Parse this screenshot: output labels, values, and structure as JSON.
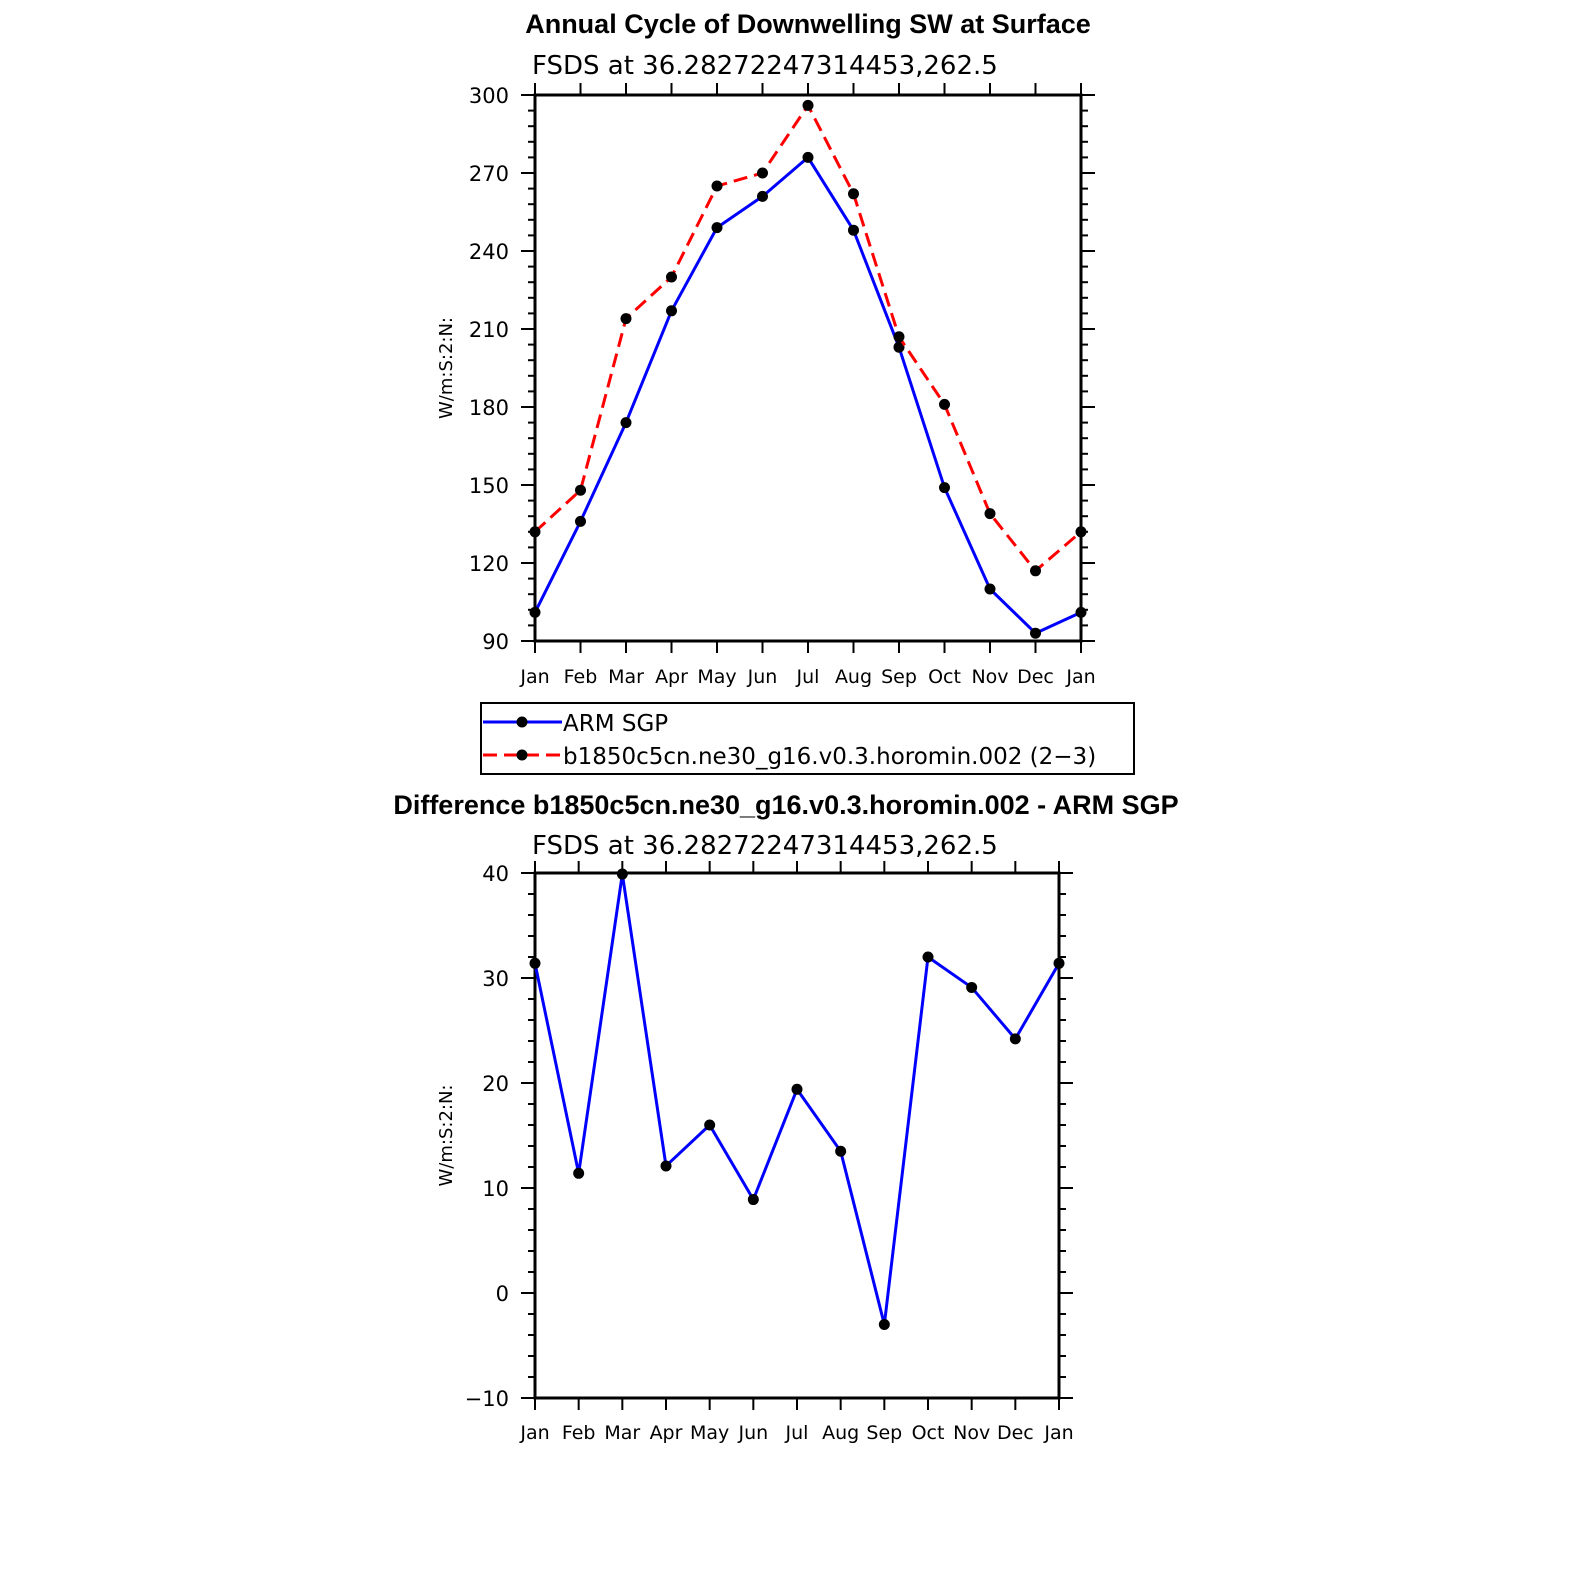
{
  "chart_data": [
    {
      "type": "line",
      "title": "Annual Cycle of Downwelling SW at Surface",
      "subtitle": "FSDS at 36.28272247314453,262.5",
      "ylabel": "W/m:S:2:N:",
      "xlabel": "",
      "categories": [
        "Jan",
        "Feb",
        "Mar",
        "Apr",
        "May",
        "Jun",
        "Jul",
        "Aug",
        "Sep",
        "Oct",
        "Nov",
        "Dec",
        "Jan"
      ],
      "ylim": [
        90,
        300
      ],
      "yticks": [
        90,
        120,
        150,
        180,
        210,
        240,
        270,
        300
      ],
      "series": [
        {
          "name": "ARM SGP",
          "color": "#0000ff",
          "dash": "solid",
          "values": [
            101,
            136,
            174,
            217,
            249,
            261,
            276,
            248,
            203,
            149,
            110,
            93,
            101
          ]
        },
        {
          "name": "b1850c5cn.ne30_g16.v0.3.horomin.002 (2−3)",
          "color": "#ff0000",
          "dash": "dashed",
          "values": [
            132,
            148,
            214,
            230,
            265,
            270,
            296,
            262,
            207,
            181,
            139,
            117,
            132
          ]
        }
      ],
      "legend": {
        "position": "below",
        "entries": [
          "ARM SGP",
          "b1850c5cn.ne30_g16.v0.3.horomin.002 (2−3)"
        ]
      }
    },
    {
      "type": "line",
      "title": "Difference b1850c5cn.ne30_g16.v0.3.horomin.002 - ARM SGP",
      "subtitle": "FSDS at 36.28272247314453,262.5",
      "ylabel": "W/m:S:2:N:",
      "xlabel": "",
      "categories": [
        "Jan",
        "Feb",
        "Mar",
        "Apr",
        "May",
        "Jun",
        "Jul",
        "Aug",
        "Sep",
        "Oct",
        "Nov",
        "Dec",
        "Jan"
      ],
      "ylim": [
        -10,
        40
      ],
      "yticks": [
        -10,
        0,
        10,
        20,
        30,
        40
      ],
      "ytick_labels": [
        "−10",
        "0",
        "10",
        "20",
        "30",
        "40"
      ],
      "series": [
        {
          "name": "Difference",
          "color": "#0000ff",
          "dash": "solid",
          "values": [
            31.4,
            11.4,
            39.9,
            12.1,
            16,
            8.9,
            19.4,
            13.5,
            -3,
            32,
            29.1,
            24.2,
            31.4
          ]
        }
      ]
    }
  ]
}
